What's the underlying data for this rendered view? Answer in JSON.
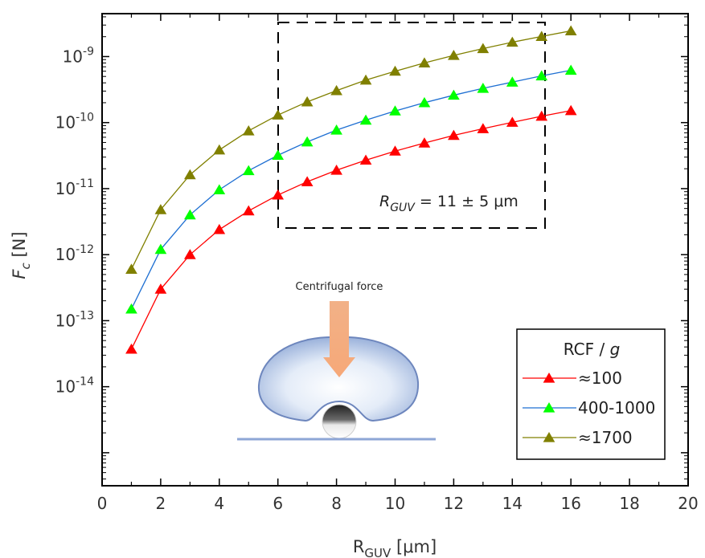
{
  "chart_data": {
    "type": "line",
    "xlabel": "R",
    "xlabel_sub": "GUV",
    "xlabel_unit": "[μm]",
    "ylabel": "F",
    "ylabel_sub": "c",
    "ylabel_unit": "[N]",
    "xlim": [
      0,
      20
    ],
    "ylim_log10": [
      -15.5,
      -8.35
    ],
    "x_ticks": [
      0,
      2,
      4,
      6,
      8,
      10,
      12,
      14,
      16,
      18,
      20
    ],
    "y_tick_exponents": [
      -14,
      -13,
      -12,
      -11,
      -10,
      -9
    ],
    "y_tick_base": "10",
    "scale_y": "log",
    "grid": false,
    "legend_position": "bottom-right",
    "legend_title": "RCF / ",
    "legend_title_italic": "g",
    "x": [
      1,
      2,
      3,
      4,
      5,
      6,
      7,
      8,
      9,
      10,
      11,
      12,
      13,
      14,
      15,
      16
    ],
    "series": [
      {
        "name": "≈100",
        "color": "#ff0000",
        "marker_color": "#ff0000",
        "values": [
          3.7e-14,
          3e-13,
          1e-12,
          2.4e-12,
          4.6e-12,
          8e-12,
          1.27e-11,
          1.9e-11,
          2.7e-11,
          3.7e-11,
          4.9e-11,
          6.4e-11,
          8.1e-11,
          1.01e-10,
          1.25e-10,
          1.52e-10
        ]
      },
      {
        "name": "400-1000",
        "color": "#1e6fd2",
        "marker_color": "#00ff00",
        "values": [
          1.5e-13,
          1.2e-12,
          4e-12,
          9.6e-12,
          1.87e-11,
          3.2e-11,
          5.1e-11,
          7.7e-11,
          1.09e-10,
          1.5e-10,
          2e-10,
          2.6e-10,
          3.3e-10,
          4.1e-10,
          5.1e-10,
          6.2e-10
        ]
      },
      {
        "name": "≈1700",
        "color": "#808000",
        "marker_color": "#808000",
        "values": [
          6e-13,
          4.8e-12,
          1.62e-11,
          3.85e-11,
          7.5e-11,
          1.3e-10,
          2.06e-10,
          3.05e-10,
          4.4e-10,
          6e-10,
          8e-10,
          1.04e-09,
          1.32e-09,
          1.65e-09,
          2.02e-09,
          2.45e-09
        ]
      }
    ],
    "annotations": {
      "range_label_main": "R",
      "range_label_sub": "GUV",
      "range_label_value": " = 11 ± 5 μm",
      "inset_caption": "Centrifugal force"
    }
  }
}
